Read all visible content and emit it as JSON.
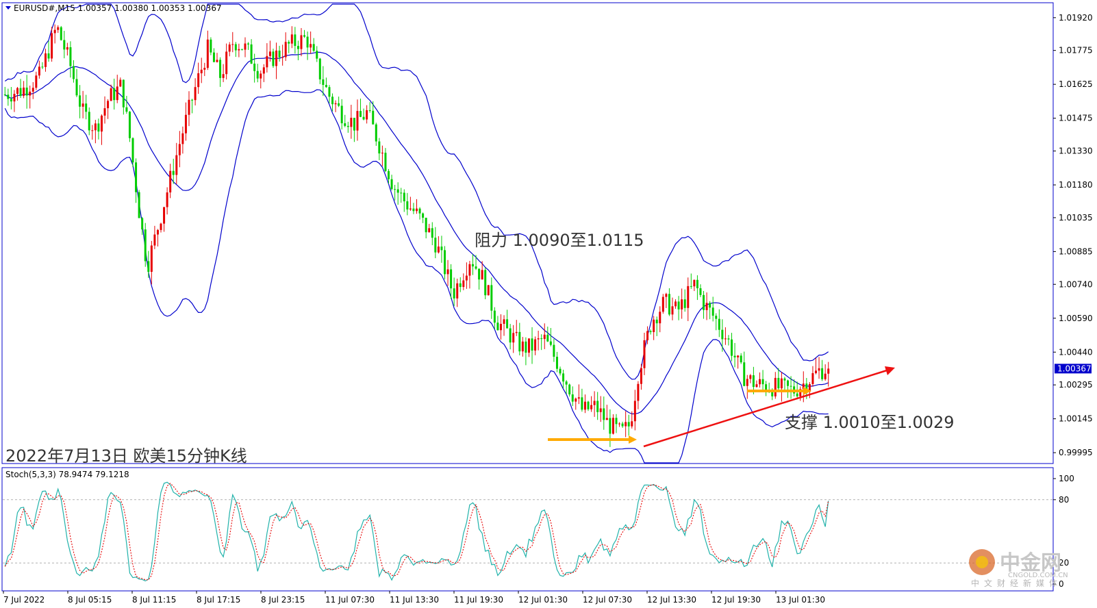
{
  "header": {
    "symbol_label": "EURUSD#,M15  1.00357 1.00380 1.00353 1.00367"
  },
  "annotations": {
    "chart_caption": "2022年7月13日 欧美15分钟K线",
    "resistance": "阻力 1.0090至1.0115",
    "support": "支撑 1.0010至1.0029"
  },
  "stoch": {
    "label": "Stoch(5,3,3) 78.9474 79.1218",
    "levels": [
      "100",
      "80",
      "20",
      "0"
    ]
  },
  "price_axis": {
    "ticks": [
      "1.01920",
      "1.01775",
      "1.01625",
      "1.01475",
      "1.01330",
      "1.01180",
      "1.01035",
      "1.00885",
      "1.00740",
      "1.00590",
      "1.00440",
      "1.00295",
      "1.00145",
      "0.99995"
    ],
    "current_price": "1.00367"
  },
  "time_axis": {
    "ticks": [
      "7 Jul 2022",
      "8 Jul 05:15",
      "8 Jul 11:15",
      "8 Jul 17:15",
      "8 Jul 23:15",
      "11 Jul 07:30",
      "11 Jul 13:30",
      "11 Jul 19:30",
      "12 Jul 01:30",
      "12 Jul 07:30",
      "12 Jul 13:30",
      "12 Jul 19:30",
      "13 Jul 01:30"
    ]
  },
  "watermark": {
    "logo_text": "中金网",
    "logo_sub": "CNGOLD.COM.CN",
    "tagline": "中文财经新媒体"
  },
  "colors": {
    "bull": "#e60000",
    "bear": "#00cc00",
    "band": "#0000cc",
    "stoch_main": "#20b2aa",
    "stoch_signal": "#e60000",
    "trendline": "#ee1111",
    "support_arrow": "#ffaa00",
    "price_tag_bg": "#0000cc"
  },
  "chart_data": [
    {
      "type": "candlestick",
      "title": "EURUSD#,M15",
      "ylim": [
        0.9995,
        1.0198
      ],
      "x_range_label": [
        "7 Jul 2022",
        "13 Jul 01:30"
      ],
      "bollinger_bands": true,
      "ohlc_path": [
        [
          0.0,
          1.0158
        ],
        [
          0.02,
          1.016
        ],
        [
          0.04,
          1.0166
        ],
        [
          0.06,
          1.0188
        ],
        [
          0.075,
          1.0172
        ],
        [
          0.09,
          1.015
        ],
        [
          0.105,
          1.0143
        ],
        [
          0.12,
          1.0156
        ],
        [
          0.135,
          1.0162
        ],
        [
          0.145,
          1.0138
        ],
        [
          0.155,
          1.0108
        ],
        [
          0.165,
          1.0082
        ],
        [
          0.175,
          1.0096
        ],
        [
          0.19,
          1.0118
        ],
        [
          0.205,
          1.014
        ],
        [
          0.22,
          1.016
        ],
        [
          0.235,
          1.0178
        ],
        [
          0.25,
          1.0166
        ],
        [
          0.265,
          1.0182
        ],
        [
          0.28,
          1.0178
        ],
        [
          0.295,
          1.0168
        ],
        [
          0.31,
          1.0174
        ],
        [
          0.33,
          1.018
        ],
        [
          0.35,
          1.0183
        ],
        [
          0.36,
          1.0172
        ],
        [
          0.375,
          1.0158
        ],
        [
          0.39,
          1.015
        ],
        [
          0.405,
          1.0145
        ],
        [
          0.42,
          1.015
        ],
        [
          0.435,
          1.0135
        ],
        [
          0.45,
          1.0118
        ],
        [
          0.465,
          1.011
        ],
        [
          0.48,
          1.0104
        ],
        [
          0.5,
          1.0092
        ],
        [
          0.52,
          1.007
        ],
        [
          0.54,
          1.0086
        ],
        [
          0.555,
          1.0076
        ],
        [
          0.57,
          1.0058
        ],
        [
          0.585,
          1.0052
        ],
        [
          0.6,
          1.0046
        ],
        [
          0.61,
          1.0046
        ],
        [
          0.625,
          1.005
        ],
        [
          0.64,
          1.004
        ],
        [
          0.655,
          1.0028
        ],
        [
          0.67,
          1.0018
        ],
        [
          0.685,
          1.002
        ],
        [
          0.7,
          1.0012
        ],
        [
          0.715,
          1.0008
        ],
        [
          0.725,
          1.0012
        ],
        [
          0.735,
          1.0036
        ],
        [
          0.75,
          1.0058
        ],
        [
          0.765,
          1.0066
        ],
        [
          0.78,
          1.0062
        ],
        [
          0.79,
          1.0068
        ],
        [
          0.8,
          1.0074
        ],
        [
          0.81,
          1.0066
        ],
        [
          0.825,
          1.0058
        ],
        [
          0.84,
          1.0048
        ],
        [
          0.855,
          1.0034
        ],
        [
          0.87,
          1.003
        ],
        [
          0.885,
          1.0029
        ],
        [
          0.9,
          1.0028
        ],
        [
          0.915,
          1.0027
        ],
        [
          0.93,
          1.0031
        ],
        [
          0.945,
          1.0036
        ],
        [
          0.955,
          1.0037
        ]
      ],
      "current_price": 1.00367
    },
    {
      "type": "line",
      "title": "Stoch(5,3,3)",
      "ylim": [
        0,
        100
      ],
      "levels": [
        20,
        80
      ],
      "series": [
        {
          "name": "Main",
          "last": 78.9474
        },
        {
          "name": "Signal",
          "last": 79.1218
        }
      ]
    }
  ]
}
